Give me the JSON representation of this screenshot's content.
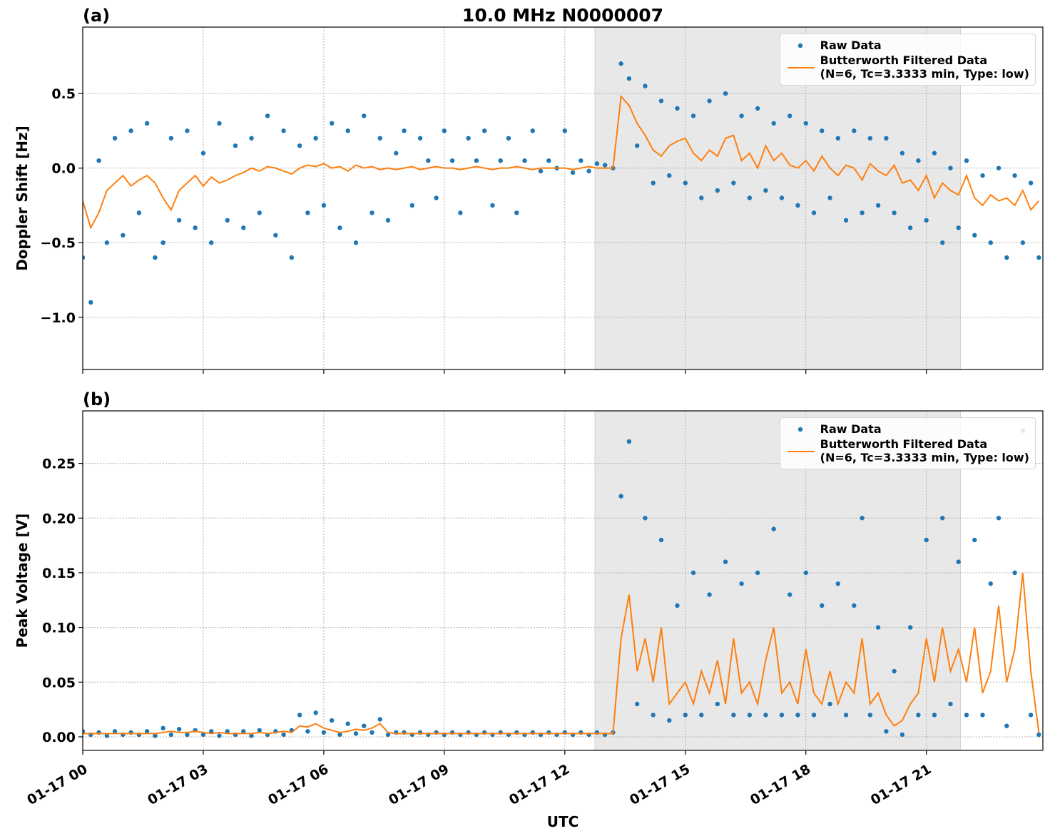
{
  "chart_data": [
    {
      "type": "scatter_line",
      "title": "10.0 MHz N0000007",
      "label": "(a)",
      "ylabel": "Doppler Shift [Hz]",
      "xlim": [
        0,
        23.9
      ],
      "ylim": [
        -1.35,
        0.945
      ],
      "xticks": [
        0,
        3,
        6,
        9,
        12,
        15,
        18,
        21
      ],
      "show_xtick_labels": false,
      "yticks": [
        {
          "value": -1.0,
          "label": "−1.0"
        },
        {
          "value": -0.5,
          "label": "−0.5"
        },
        {
          "value": 0.0,
          "label": "0.0"
        },
        0.5
      ],
      "grid": true,
      "legend": "upper right",
      "shaded_span": [
        12.75,
        21.85
      ],
      "shade_color": "#e8e8e8",
      "x": [
        0,
        0.2,
        0.4,
        0.6,
        0.8,
        1,
        1.2,
        1.4,
        1.6,
        1.8,
        2,
        2.2,
        2.4,
        2.6,
        2.8,
        3,
        3.2,
        3.4,
        3.6,
        3.8,
        4,
        4.2,
        4.4,
        4.6,
        4.8,
        5,
        5.2,
        5.4,
        5.6,
        5.8,
        6,
        6.2,
        6.4,
        6.6,
        6.8,
        7,
        7.2,
        7.4,
        7.6,
        7.8,
        8,
        8.2,
        8.4,
        8.6,
        8.8,
        9,
        9.2,
        9.4,
        9.6,
        9.8,
        10,
        10.2,
        10.4,
        10.6,
        10.8,
        11,
        11.2,
        11.4,
        11.6,
        11.8,
        12,
        12.2,
        12.4,
        12.6,
        12.8,
        13,
        13.2,
        13.4,
        13.6,
        13.8,
        14,
        14.2,
        14.4,
        14.6,
        14.8,
        15,
        15.2,
        15.4,
        15.6,
        15.8,
        16,
        16.2,
        16.4,
        16.6,
        16.8,
        17,
        17.2,
        17.4,
        17.6,
        17.8,
        18,
        18.2,
        18.4,
        18.6,
        18.8,
        19,
        19.2,
        19.4,
        19.6,
        19.8,
        20,
        20.2,
        20.4,
        20.6,
        20.8,
        21,
        21.2,
        21.4,
        21.6,
        21.8,
        22,
        22.2,
        22.4,
        22.6,
        22.8,
        23,
        23.2,
        23.4,
        23.6,
        23.8
      ],
      "series": [
        {
          "name": "Raw Data",
          "kind": "dots",
          "color": "#1f77b4",
          "values": [
            -0.6,
            -0.9,
            0.05,
            -0.5,
            0.2,
            -0.45,
            0.25,
            -0.3,
            0.3,
            -0.6,
            -0.5,
            0.2,
            -0.35,
            0.25,
            -0.4,
            0.1,
            -0.5,
            0.3,
            -0.35,
            0.15,
            -0.4,
            0.2,
            -0.3,
            0.35,
            -0.45,
            0.25,
            -0.6,
            0.15,
            -0.3,
            0.2,
            -0.25,
            0.3,
            -0.4,
            0.25,
            -0.5,
            0.35,
            -0.3,
            0.2,
            -0.35,
            0.1,
            0.25,
            -0.25,
            0.2,
            0.05,
            -0.2,
            0.25,
            0.05,
            -0.3,
            0.2,
            0.05,
            0.25,
            -0.25,
            0.05,
            0.2,
            -0.3,
            0.05,
            0.25,
            -0.02,
            0.05,
            0.0,
            0.25,
            -0.03,
            0.05,
            -0.02,
            0.03,
            0.02,
            0.0,
            0.7,
            0.6,
            0.15,
            0.55,
            -0.1,
            0.45,
            -0.05,
            0.4,
            -0.1,
            0.35,
            -0.2,
            0.45,
            -0.15,
            0.5,
            -0.1,
            0.35,
            -0.2,
            0.4,
            -0.15,
            0.3,
            -0.2,
            0.35,
            -0.25,
            0.3,
            -0.3,
            0.25,
            -0.2,
            0.2,
            -0.35,
            0.25,
            -0.3,
            0.2,
            -0.25,
            0.2,
            -0.3,
            0.1,
            -0.4,
            0.05,
            -0.35,
            0.1,
            -0.5,
            0.0,
            -0.4,
            0.05,
            -0.45,
            -0.05,
            -0.5,
            0.0,
            -0.6,
            -0.05,
            -0.5,
            -0.1,
            -0.6
          ]
        },
        {
          "name": "Butterworth Filtered Data\n(N=6, Tc=3.3333 min, Type: low)",
          "kind": "line",
          "color": "#ff7f0e",
          "values": [
            -0.22,
            -0.4,
            -0.3,
            -0.15,
            -0.1,
            -0.05,
            -0.12,
            -0.08,
            -0.05,
            -0.1,
            -0.2,
            -0.28,
            -0.15,
            -0.1,
            -0.05,
            -0.12,
            -0.06,
            -0.1,
            -0.08,
            -0.05,
            -0.03,
            0.0,
            -0.02,
            0.01,
            0.0,
            -0.02,
            -0.04,
            0.0,
            0.02,
            0.01,
            0.03,
            0.0,
            0.01,
            -0.02,
            0.02,
            0.0,
            0.01,
            -0.01,
            0.0,
            -0.01,
            0.0,
            0.01,
            -0.01,
            0.0,
            0.01,
            0.0,
            0.0,
            -0.01,
            0.0,
            0.01,
            0.0,
            -0.01,
            0.0,
            0.0,
            0.01,
            0.0,
            -0.01,
            0.0,
            0.0,
            0.0,
            0.0,
            -0.01,
            0.0,
            0.01,
            0.0,
            0.0,
            0.0,
            0.48,
            0.42,
            0.3,
            0.22,
            0.12,
            0.08,
            0.15,
            0.18,
            0.2,
            0.1,
            0.05,
            0.12,
            0.08,
            0.2,
            0.22,
            0.05,
            0.1,
            0.0,
            0.15,
            0.05,
            0.1,
            0.02,
            0.0,
            0.05,
            -0.02,
            0.08,
            0.0,
            -0.05,
            0.02,
            0.0,
            -0.08,
            0.03,
            -0.02,
            -0.05,
            0.02,
            -0.1,
            -0.08,
            -0.15,
            -0.05,
            -0.2,
            -0.1,
            -0.15,
            -0.18,
            -0.05,
            -0.2,
            -0.25,
            -0.18,
            -0.22,
            -0.2,
            -0.25,
            -0.15,
            -0.28,
            -0.22
          ]
        }
      ]
    },
    {
      "type": "scatter_line",
      "label": "(b)",
      "ylabel": "Peak Voltage [V]",
      "xlabel": "UTC",
      "xlim": [
        0,
        23.9
      ],
      "ylim": [
        -0.0124,
        0.298
      ],
      "xticks": [
        {
          "value": 0,
          "label": "01-17 00"
        },
        {
          "value": 3,
          "label": "01-17 03"
        },
        {
          "value": 6,
          "label": "01-17 06"
        },
        {
          "value": 9,
          "label": "01-17 09"
        },
        {
          "value": 12,
          "label": "01-17 12"
        },
        {
          "value": 15,
          "label": "01-17 15"
        },
        {
          "value": 18,
          "label": "01-17 18"
        },
        {
          "value": 21,
          "label": "01-17 21"
        }
      ],
      "show_xtick_labels": true,
      "yticks": [
        {
          "value": 0.0,
          "label": "0.00"
        },
        0.05,
        {
          "value": 0.1,
          "label": "0.10"
        },
        0.15,
        {
          "value": 0.2,
          "label": "0.20"
        },
        0.25
      ],
      "grid": true,
      "legend": "upper right",
      "shaded_span": [
        12.75,
        21.85
      ],
      "shade_color": "#e8e8e8",
      "x": [
        0,
        0.2,
        0.4,
        0.6,
        0.8,
        1,
        1.2,
        1.4,
        1.6,
        1.8,
        2,
        2.2,
        2.4,
        2.6,
        2.8,
        3,
        3.2,
        3.4,
        3.6,
        3.8,
        4,
        4.2,
        4.4,
        4.6,
        4.8,
        5,
        5.2,
        5.4,
        5.6,
        5.8,
        6,
        6.2,
        6.4,
        6.6,
        6.8,
        7,
        7.2,
        7.4,
        7.6,
        7.8,
        8,
        8.2,
        8.4,
        8.6,
        8.8,
        9,
        9.2,
        9.4,
        9.6,
        9.8,
        10,
        10.2,
        10.4,
        10.6,
        10.8,
        11,
        11.2,
        11.4,
        11.6,
        11.8,
        12,
        12.2,
        12.4,
        12.6,
        12.8,
        13,
        13.2,
        13.4,
        13.6,
        13.8,
        14,
        14.2,
        14.4,
        14.6,
        14.8,
        15,
        15.2,
        15.4,
        15.6,
        15.8,
        16,
        16.2,
        16.4,
        16.6,
        16.8,
        17,
        17.2,
        17.4,
        17.6,
        17.8,
        18,
        18.2,
        18.4,
        18.6,
        18.8,
        19,
        19.2,
        19.4,
        19.6,
        19.8,
        20,
        20.2,
        20.4,
        20.6,
        20.8,
        21,
        21.2,
        21.4,
        21.6,
        21.8,
        22,
        22.2,
        22.4,
        22.6,
        22.8,
        23,
        23.2,
        23.4,
        23.6,
        23.8
      ],
      "series": [
        {
          "name": "Raw Data",
          "kind": "dots",
          "color": "#1f77b4",
          "values": [
            0.005,
            0.002,
            0.004,
            0.001,
            0.005,
            0.002,
            0.004,
            0.002,
            0.005,
            0.001,
            0.008,
            0.002,
            0.007,
            0.002,
            0.006,
            0.002,
            0.005,
            0.001,
            0.005,
            0.002,
            0.005,
            0.001,
            0.006,
            0.002,
            0.005,
            0.002,
            0.006,
            0.02,
            0.005,
            0.022,
            0.004,
            0.015,
            0.002,
            0.012,
            0.003,
            0.01,
            0.004,
            0.016,
            0.002,
            0.004,
            0.004,
            0.002,
            0.004,
            0.002,
            0.004,
            0.002,
            0.004,
            0.002,
            0.004,
            0.002,
            0.004,
            0.002,
            0.004,
            0.002,
            0.004,
            0.002,
            0.004,
            0.002,
            0.004,
            0.002,
            0.004,
            0.002,
            0.004,
            0.002,
            0.004,
            0.002,
            0.004,
            0.22,
            0.27,
            0.03,
            0.2,
            0.02,
            0.18,
            0.015,
            0.12,
            0.02,
            0.15,
            0.02,
            0.13,
            0.03,
            0.16,
            0.02,
            0.14,
            0.02,
            0.15,
            0.02,
            0.19,
            0.02,
            0.13,
            0.02,
            0.15,
            0.02,
            0.12,
            0.03,
            0.14,
            0.02,
            0.12,
            0.2,
            0.02,
            0.1,
            0.005,
            0.06,
            0.002,
            0.1,
            0.02,
            0.18,
            0.02,
            0.2,
            0.03,
            0.16,
            0.02,
            0.18,
            0.02,
            0.14,
            0.2,
            0.01,
            0.15,
            0.28,
            0.02,
            0.002
          ]
        },
        {
          "name": "Butterworth Filtered Data\n(N=6, Tc=3.3333 min, Type: low)",
          "kind": "line",
          "color": "#ff7f0e",
          "values": [
            0.003,
            0.003,
            0.003,
            0.003,
            0.003,
            0.003,
            0.003,
            0.003,
            0.003,
            0.003,
            0.004,
            0.005,
            0.004,
            0.004,
            0.005,
            0.004,
            0.003,
            0.004,
            0.003,
            0.003,
            0.003,
            0.003,
            0.004,
            0.003,
            0.004,
            0.005,
            0.004,
            0.01,
            0.009,
            0.012,
            0.008,
            0.006,
            0.004,
            0.005,
            0.007,
            0.006,
            0.008,
            0.012,
            0.004,
            0.003,
            0.003,
            0.003,
            0.003,
            0.003,
            0.003,
            0.003,
            0.003,
            0.003,
            0.003,
            0.003,
            0.003,
            0.003,
            0.003,
            0.003,
            0.003,
            0.003,
            0.003,
            0.003,
            0.003,
            0.003,
            0.003,
            0.003,
            0.003,
            0.003,
            0.003,
            0.003,
            0.003,
            0.09,
            0.13,
            0.06,
            0.09,
            0.05,
            0.1,
            0.03,
            0.04,
            0.05,
            0.03,
            0.06,
            0.04,
            0.07,
            0.03,
            0.09,
            0.04,
            0.05,
            0.03,
            0.07,
            0.1,
            0.04,
            0.05,
            0.03,
            0.08,
            0.04,
            0.03,
            0.06,
            0.03,
            0.05,
            0.04,
            0.09,
            0.03,
            0.04,
            0.02,
            0.01,
            0.015,
            0.03,
            0.04,
            0.09,
            0.05,
            0.1,
            0.06,
            0.08,
            0.05,
            0.1,
            0.04,
            0.06,
            0.12,
            0.05,
            0.08,
            0.15,
            0.06,
            0.004
          ]
        }
      ]
    }
  ]
}
